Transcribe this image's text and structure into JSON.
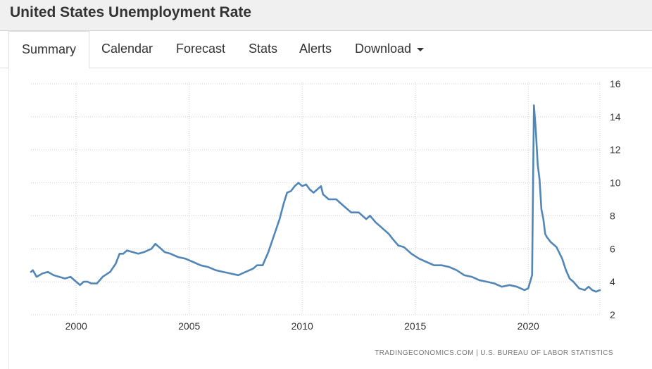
{
  "page": {
    "title": "United States Unemployment Rate"
  },
  "tabs": [
    {
      "label": "Summary",
      "active": true
    },
    {
      "label": "Calendar"
    },
    {
      "label": "Forecast"
    },
    {
      "label": "Stats"
    },
    {
      "label": "Alerts"
    },
    {
      "label": "Download"
    }
  ],
  "chart_data": {
    "type": "line",
    "title": "",
    "xlabel": "",
    "ylabel": "",
    "xlim": [
      1998,
      2023.17
    ],
    "ylim": [
      2,
      16
    ],
    "x_ticks": [
      2000,
      2005,
      2010,
      2015,
      2020
    ],
    "y_ticks": [
      2,
      4,
      6,
      8,
      10,
      12,
      14,
      16
    ],
    "y_axis_side": "right",
    "grid": true,
    "line_color": "#5186b7",
    "series": [
      {
        "points": [
          [
            1998.0,
            4.6
          ],
          [
            1998.08,
            4.7
          ],
          [
            1998.25,
            4.3
          ],
          [
            1998.5,
            4.5
          ],
          [
            1998.75,
            4.6
          ],
          [
            1999.0,
            4.4
          ],
          [
            1999.25,
            4.3
          ],
          [
            1999.5,
            4.2
          ],
          [
            1999.75,
            4.3
          ],
          [
            2000.0,
            4.0
          ],
          [
            2000.17,
            3.8
          ],
          [
            2000.33,
            4.0
          ],
          [
            2000.5,
            4.0
          ],
          [
            2000.67,
            3.9
          ],
          [
            2000.92,
            3.9
          ],
          [
            2001.17,
            4.3
          ],
          [
            2001.5,
            4.6
          ],
          [
            2001.75,
            5.1
          ],
          [
            2001.92,
            5.7
          ],
          [
            2002.08,
            5.7
          ],
          [
            2002.25,
            5.9
          ],
          [
            2002.5,
            5.8
          ],
          [
            2002.75,
            5.7
          ],
          [
            2003.0,
            5.8
          ],
          [
            2003.17,
            5.9
          ],
          [
            2003.33,
            6.0
          ],
          [
            2003.5,
            6.3
          ],
          [
            2003.67,
            6.1
          ],
          [
            2003.92,
            5.8
          ],
          [
            2004.17,
            5.7
          ],
          [
            2004.5,
            5.5
          ],
          [
            2004.83,
            5.4
          ],
          [
            2005.17,
            5.2
          ],
          [
            2005.5,
            5.0
          ],
          [
            2005.83,
            4.9
          ],
          [
            2006.17,
            4.7
          ],
          [
            2006.5,
            4.6
          ],
          [
            2006.83,
            4.5
          ],
          [
            2007.17,
            4.4
          ],
          [
            2007.5,
            4.6
          ],
          [
            2007.83,
            4.8
          ],
          [
            2008.0,
            5.0
          ],
          [
            2008.25,
            5.0
          ],
          [
            2008.5,
            5.8
          ],
          [
            2008.75,
            6.8
          ],
          [
            2009.0,
            7.8
          ],
          [
            2009.17,
            8.7
          ],
          [
            2009.33,
            9.4
          ],
          [
            2009.5,
            9.5
          ],
          [
            2009.67,
            9.8
          ],
          [
            2009.83,
            10.0
          ],
          [
            2010.0,
            9.8
          ],
          [
            2010.17,
            9.9
          ],
          [
            2010.33,
            9.6
          ],
          [
            2010.5,
            9.4
          ],
          [
            2010.83,
            9.8
          ],
          [
            2010.92,
            9.3
          ],
          [
            2011.17,
            9.0
          ],
          [
            2011.5,
            9.0
          ],
          [
            2011.83,
            8.6
          ],
          [
            2012.17,
            8.2
          ],
          [
            2012.5,
            8.2
          ],
          [
            2012.83,
            7.8
          ],
          [
            2013.0,
            8.0
          ],
          [
            2013.25,
            7.6
          ],
          [
            2013.5,
            7.3
          ],
          [
            2013.83,
            6.9
          ],
          [
            2014.0,
            6.6
          ],
          [
            2014.25,
            6.2
          ],
          [
            2014.5,
            6.1
          ],
          [
            2014.83,
            5.7
          ],
          [
            2015.17,
            5.4
          ],
          [
            2015.5,
            5.2
          ],
          [
            2015.83,
            5.0
          ],
          [
            2016.17,
            5.0
          ],
          [
            2016.5,
            4.9
          ],
          [
            2016.83,
            4.7
          ],
          [
            2017.17,
            4.4
          ],
          [
            2017.5,
            4.3
          ],
          [
            2017.83,
            4.1
          ],
          [
            2018.17,
            4.0
          ],
          [
            2018.5,
            3.9
          ],
          [
            2018.83,
            3.7
          ],
          [
            2019.17,
            3.8
          ],
          [
            2019.5,
            3.7
          ],
          [
            2019.83,
            3.5
          ],
          [
            2020.0,
            3.6
          ],
          [
            2020.17,
            4.4
          ],
          [
            2020.25,
            14.7
          ],
          [
            2020.33,
            13.3
          ],
          [
            2020.42,
            11.1
          ],
          [
            2020.5,
            10.2
          ],
          [
            2020.58,
            8.4
          ],
          [
            2020.67,
            7.8
          ],
          [
            2020.75,
            6.9
          ],
          [
            2020.83,
            6.7
          ],
          [
            2021.0,
            6.4
          ],
          [
            2021.25,
            6.1
          ],
          [
            2021.5,
            5.4
          ],
          [
            2021.67,
            4.7
          ],
          [
            2021.83,
            4.2
          ],
          [
            2022.0,
            4.0
          ],
          [
            2022.25,
            3.6
          ],
          [
            2022.5,
            3.5
          ],
          [
            2022.67,
            3.7
          ],
          [
            2022.83,
            3.5
          ],
          [
            2023.0,
            3.4
          ],
          [
            2023.17,
            3.5
          ]
        ]
      }
    ]
  },
  "footer": {
    "source": "TRADINGECONOMICS.COM  |  U.S. BUREAU OF LABOR STATISTICS"
  }
}
